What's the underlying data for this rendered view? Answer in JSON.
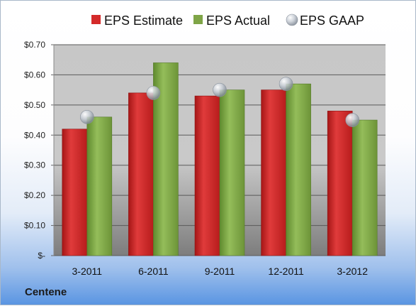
{
  "company": "Centene",
  "colors": {
    "estimate": "#d42a2a",
    "actual": "#7fa547",
    "gaap": "#b8bec6"
  },
  "chart_data": {
    "type": "bar",
    "categories": [
      "3-2011",
      "6-2011",
      "9-2011",
      "12-2011",
      "3-2012"
    ],
    "series": [
      {
        "name": "EPS Estimate",
        "values": [
          0.42,
          0.54,
          0.53,
          0.55,
          0.48
        ]
      },
      {
        "name": "EPS Actual",
        "values": [
          0.46,
          0.64,
          0.55,
          0.57,
          0.45
        ]
      },
      {
        "name": "EPS GAAP",
        "values": [
          0.46,
          0.54,
          0.55,
          0.57,
          0.45
        ],
        "marker": "circle"
      }
    ],
    "yticks": [
      0,
      0.1,
      0.2,
      0.3,
      0.4,
      0.5,
      0.6,
      0.7
    ],
    "ytick_labels": [
      "$-",
      "$0.10",
      "$0.20",
      "$0.30",
      "$0.40",
      "$0.50",
      "$0.60",
      "$0.70"
    ],
    "ylim": [
      0,
      0.7
    ],
    "grid": true,
    "legend_position": "top"
  }
}
